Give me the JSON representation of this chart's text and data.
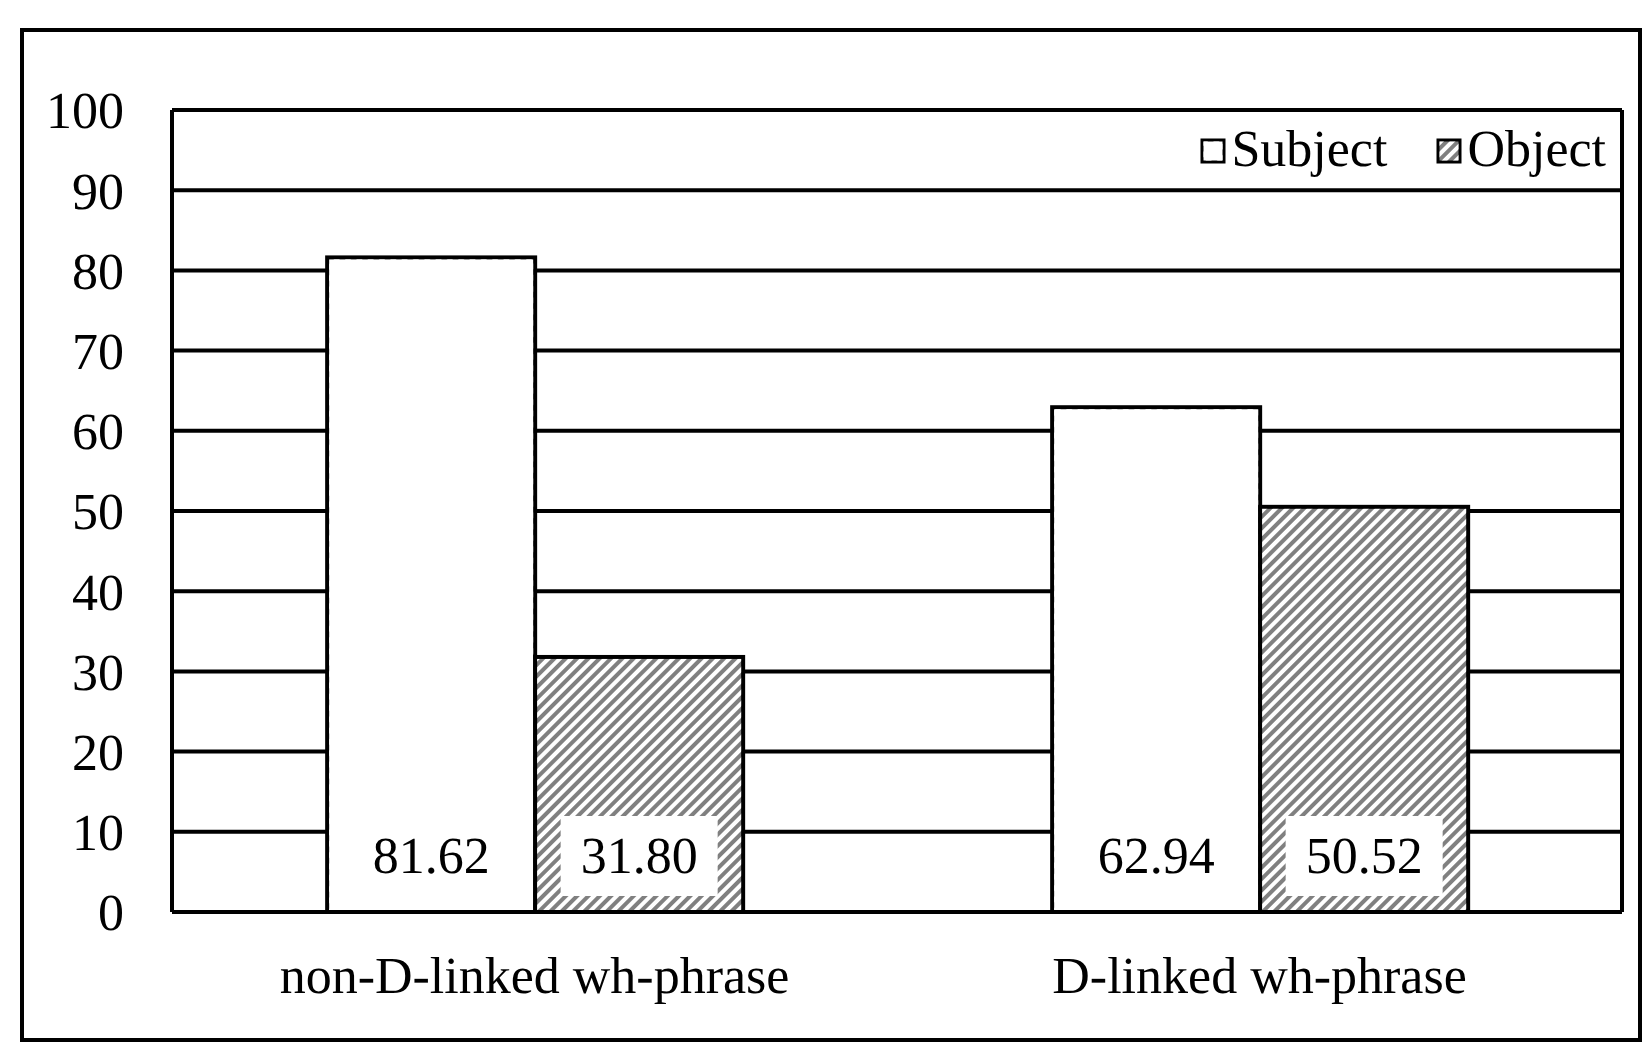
{
  "chart_data": {
    "type": "bar",
    "categories": [
      "non-D-linked wh-phrase",
      "D-linked wh-phrase"
    ],
    "series": [
      {
        "name": "Subject",
        "color": "#ffffff",
        "values": [
          81.62,
          62.94
        ],
        "value_labels": [
          "81.62",
          "62.94"
        ]
      },
      {
        "name": "Object",
        "color": "#808080",
        "values": [
          31.8,
          50.52
        ],
        "value_labels": [
          "31.80",
          "50.52"
        ]
      }
    ],
    "ylim": [
      0,
      100
    ],
    "yticks": [
      0,
      10,
      20,
      30,
      40,
      50,
      60,
      70,
      80,
      90,
      100
    ],
    "grid": "y",
    "legend": "top right"
  }
}
